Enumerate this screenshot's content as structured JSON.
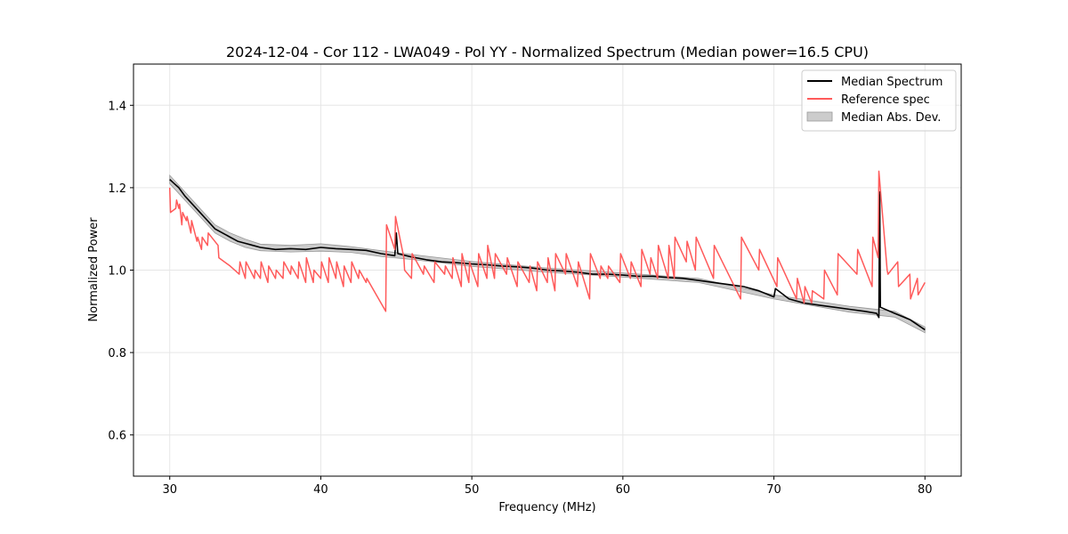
{
  "chart_data": {
    "type": "line",
    "title": "2024-12-04 - Cor 112 - LWA049 - Pol YY - Normalized Spectrum (Median power=16.5 CPU)",
    "xlabel": "Frequency (MHz)",
    "ylabel": "Normalized Power",
    "xlim": [
      27.6,
      82.4
    ],
    "ylim": [
      0.5,
      1.5
    ],
    "xticks": [
      30,
      40,
      50,
      60,
      70,
      80
    ],
    "yticks": [
      0.6,
      0.8,
      1.0,
      1.2,
      1.4
    ],
    "grid": true,
    "legend_position": "top-right",
    "series": [
      {
        "name": "Median Spectrum",
        "color": "#000000",
        "x": [
          30.0,
          30.3,
          30.6,
          31.0,
          31.5,
          32.0,
          32.5,
          33.0,
          33.5,
          34.0,
          34.5,
          35.0,
          35.5,
          36.0,
          37.0,
          38.0,
          39.0,
          40.0,
          41.0,
          42.0,
          43.0,
          44.0,
          44.9,
          45.0,
          45.1,
          46.0,
          47.0,
          48.0,
          49.0,
          50.0,
          51.0,
          52.0,
          53.0,
          54.0,
          55.0,
          56.0,
          57.0,
          58.0,
          59.0,
          60.0,
          61.0,
          62.0,
          63.0,
          64.0,
          65.0,
          66.0,
          67.0,
          68.0,
          69.0,
          70.0,
          70.1,
          71.0,
          72.0,
          73.0,
          74.0,
          75.0,
          76.0,
          76.8,
          76.95,
          77.0,
          77.05,
          78.0,
          79.0,
          80.0
        ],
        "values": [
          1.22,
          1.21,
          1.2,
          1.18,
          1.16,
          1.14,
          1.12,
          1.1,
          1.09,
          1.08,
          1.07,
          1.065,
          1.06,
          1.055,
          1.05,
          1.052,
          1.05,
          1.055,
          1.052,
          1.05,
          1.048,
          1.04,
          1.035,
          1.09,
          1.04,
          1.032,
          1.025,
          1.02,
          1.018,
          1.015,
          1.013,
          1.01,
          1.008,
          1.005,
          1.0,
          0.998,
          0.995,
          0.99,
          0.99,
          0.988,
          0.985,
          0.985,
          0.982,
          0.98,
          0.975,
          0.97,
          0.965,
          0.96,
          0.95,
          0.935,
          0.955,
          0.93,
          0.92,
          0.915,
          0.91,
          0.905,
          0.9,
          0.895,
          0.885,
          1.19,
          0.91,
          0.895,
          0.88,
          0.855
        ]
      },
      {
        "name": "Reference spec",
        "color": "#ff5a5a",
        "x": [
          30.0,
          30.05,
          30.4,
          30.45,
          30.6,
          30.65,
          30.8,
          30.85,
          31.1,
          31.15,
          31.4,
          31.45,
          31.8,
          31.85,
          32.1,
          32.15,
          32.5,
          32.55,
          33.2,
          33.25,
          34.0,
          34.6,
          34.65,
          35.0,
          35.05,
          35.6,
          35.65,
          36.0,
          36.05,
          36.5,
          36.55,
          37.0,
          37.05,
          37.5,
          37.55,
          38.0,
          38.05,
          38.5,
          38.55,
          39.0,
          39.05,
          39.5,
          39.55,
          40.0,
          40.05,
          40.5,
          40.55,
          41.0,
          41.05,
          41.5,
          41.55,
          42.0,
          42.05,
          42.5,
          42.55,
          43.0,
          43.05,
          44.3,
          44.35,
          44.9,
          44.95,
          45.5,
          45.55,
          46.0,
          46.05,
          46.8,
          46.85,
          47.5,
          47.55,
          48.2,
          48.25,
          48.7,
          48.75,
          49.3,
          49.35,
          49.8,
          49.85,
          50.4,
          50.45,
          51.0,
          51.05,
          51.5,
          51.55,
          52.3,
          52.35,
          53.0,
          53.05,
          53.8,
          53.85,
          54.3,
          54.35,
          55.0,
          55.05,
          55.5,
          55.55,
          56.2,
          56.25,
          57.0,
          57.05,
          57.8,
          57.85,
          58.5,
          58.55,
          59.0,
          59.05,
          59.8,
          59.85,
          60.5,
          60.55,
          61.2,
          61.25,
          61.8,
          61.85,
          62.3,
          62.35,
          63.0,
          63.05,
          63.4,
          63.45,
          64.2,
          64.25,
          64.8,
          64.85,
          66.0,
          66.05,
          67.8,
          67.85,
          69.0,
          69.05,
          70.2,
          70.25,
          71.5,
          71.55,
          72.0,
          72.05,
          72.5,
          72.55,
          73.3,
          73.35,
          74.2,
          74.25,
          75.5,
          75.55,
          76.5,
          76.55,
          76.9,
          76.95,
          77.5,
          77.55,
          78.2,
          78.25,
          79.0,
          79.05,
          79.5,
          79.55,
          80.0
        ],
        "values": [
          1.2,
          1.14,
          1.15,
          1.17,
          1.15,
          1.16,
          1.11,
          1.14,
          1.12,
          1.13,
          1.09,
          1.12,
          1.07,
          1.08,
          1.05,
          1.08,
          1.06,
          1.09,
          1.06,
          1.03,
          1.01,
          0.99,
          1.02,
          0.98,
          1.02,
          0.98,
          1.0,
          0.98,
          1.02,
          0.97,
          1.01,
          0.98,
          1.0,
          0.98,
          1.02,
          0.99,
          1.01,
          0.98,
          1.02,
          0.97,
          1.03,
          0.97,
          1.0,
          0.98,
          1.02,
          0.97,
          1.03,
          0.98,
          1.02,
          0.96,
          1.01,
          0.97,
          1.02,
          0.98,
          1.0,
          0.97,
          0.98,
          0.9,
          1.11,
          1.05,
          1.13,
          1.03,
          1.0,
          0.98,
          1.04,
          0.99,
          1.01,
          0.97,
          1.02,
          0.99,
          1.01,
          0.98,
          1.03,
          0.96,
          1.04,
          0.97,
          1.02,
          0.96,
          1.04,
          0.98,
          1.06,
          0.98,
          1.04,
          0.99,
          1.03,
          0.96,
          1.02,
          0.97,
          1.01,
          0.95,
          1.02,
          0.97,
          1.03,
          0.95,
          1.04,
          0.99,
          1.04,
          0.96,
          1.02,
          0.93,
          1.04,
          0.98,
          1.01,
          0.98,
          1.01,
          0.97,
          1.04,
          0.98,
          1.02,
          0.96,
          1.05,
          0.99,
          1.03,
          0.98,
          1.06,
          0.98,
          1.06,
          0.98,
          1.08,
          1.02,
          1.07,
          1.0,
          1.08,
          0.98,
          1.06,
          0.93,
          1.08,
          1.0,
          1.05,
          0.96,
          1.03,
          0.93,
          0.98,
          0.92,
          0.96,
          0.92,
          0.95,
          0.93,
          1.0,
          0.94,
          1.04,
          0.99,
          1.05,
          0.96,
          1.08,
          1.03,
          1.24,
          1.0,
          0.99,
          1.02,
          0.96,
          0.99,
          0.93,
          0.98,
          0.94,
          0.97
        ]
      },
      {
        "name": "Median Abs. Dev.",
        "type": "band",
        "color": "#cccccc",
        "edge_color": "#999999",
        "x": [
          30.0,
          31.0,
          32.0,
          33.0,
          34.0,
          35.0,
          36.0,
          38.0,
          40.0,
          42.0,
          44.0,
          46.0,
          50.0,
          55.0,
          60.0,
          65.0,
          70.0,
          75.0,
          78.0,
          80.0
        ],
        "lower": [
          1.21,
          1.17,
          1.13,
          1.09,
          1.07,
          1.055,
          1.047,
          1.044,
          1.046,
          1.043,
          1.033,
          1.026,
          1.009,
          0.995,
          0.983,
          0.97,
          0.93,
          0.898,
          0.886,
          0.848
        ],
        "upper": [
          1.23,
          1.19,
          1.15,
          1.11,
          1.09,
          1.075,
          1.063,
          1.06,
          1.064,
          1.057,
          1.047,
          1.038,
          1.021,
          1.005,
          0.993,
          0.98,
          0.94,
          0.912,
          0.9,
          0.862
        ]
      }
    ]
  }
}
